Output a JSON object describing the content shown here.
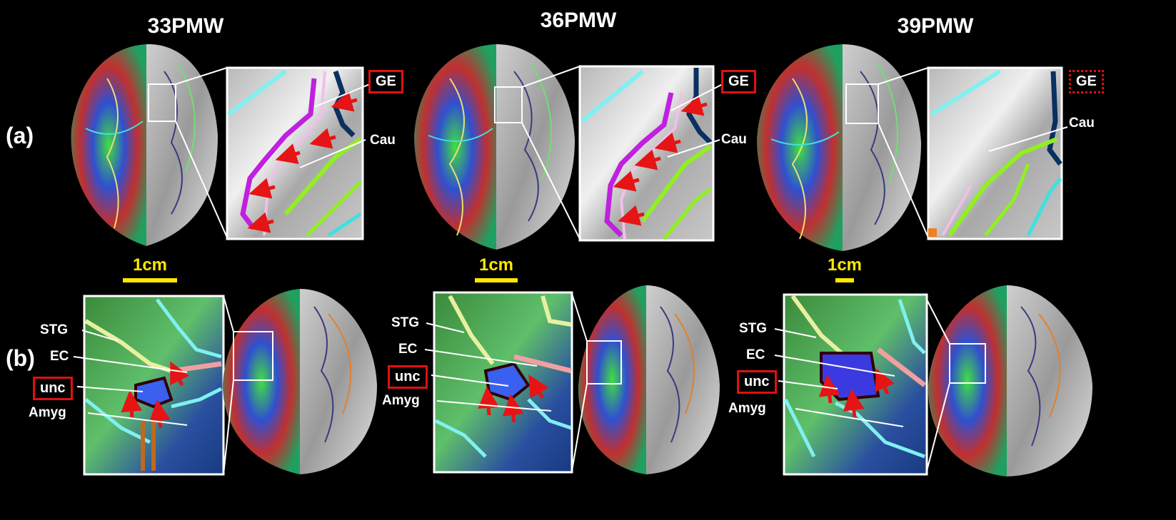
{
  "columns": [
    {
      "title": "33PMW",
      "scale": "1cm"
    },
    {
      "title": "36PMW",
      "scale": "1cm"
    },
    {
      "title": "39PMW",
      "scale": "1cm"
    }
  ],
  "rows": [
    "(a)",
    "(b)"
  ],
  "row_a_labels": {
    "ge": "GE",
    "cau": "Cau"
  },
  "row_b_labels": {
    "stg": "STG",
    "ec": "EC",
    "unc": "unc",
    "amyg": "Amyg"
  },
  "colors": {
    "arrow": "#e61414",
    "highlight_box": "#e01010",
    "scale": "#ffe800",
    "ge_outline": "#c020e0"
  }
}
